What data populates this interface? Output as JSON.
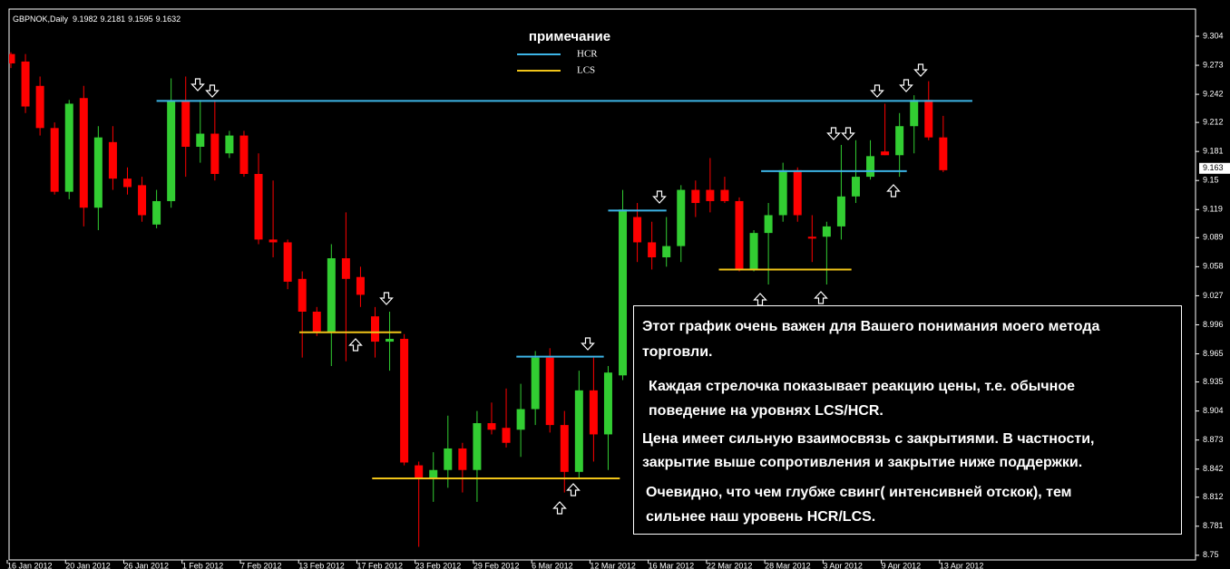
{
  "chart_data": {
    "type": "candlestick",
    "title": "GBPNOK,Daily",
    "header_values": [
      9.1982,
      9.2181,
      9.1595,
      9.1632
    ],
    "up_color": "#32cd32",
    "down_color": "#ff0000",
    "open": [
      9.285,
      9.277,
      9.251,
      9.206,
      9.138,
      9.238,
      9.121,
      9.191,
      9.152,
      9.145,
      9.103,
      9.128,
      9.235,
      9.186,
      9.2,
      9.179,
      9.198,
      9.157,
      9.087,
      9.084,
      9.045,
      9.01,
      8.988,
      9.067,
      9.047,
      9.005,
      8.978,
      8.981,
      8.846,
      8.833,
      8.841,
      8.864,
      8.841,
      8.891,
      8.886,
      8.884,
      8.906,
      8.961,
      8.889,
      8.839,
      8.926,
      8.879,
      8.942,
      9.111,
      9.084,
      9.068,
      9.08,
      9.14,
      9.14,
      9.14,
      9.128,
      9.055,
      9.094,
      9.113,
      9.161,
      9.09,
      9.09,
      9.101,
      9.133,
      9.154,
      9.181,
      9.177,
      9.208,
      9.236,
      9.196
    ],
    "high": [
      9.287,
      9.285,
      9.261,
      9.212,
      9.236,
      9.251,
      9.208,
      9.208,
      9.164,
      9.154,
      9.14,
      9.259,
      9.261,
      9.236,
      9.236,
      9.203,
      9.203,
      9.179,
      9.15,
      9.087,
      9.053,
      9.015,
      9.082,
      9.116,
      9.058,
      9.015,
      9.01,
      8.986,
      8.85,
      8.86,
      8.899,
      8.87,
      8.904,
      8.913,
      8.928,
      8.933,
      8.968,
      8.971,
      8.904,
      8.947,
      8.961,
      8.952,
      9.14,
      9.126,
      9.106,
      9.111,
      9.145,
      9.15,
      9.174,
      9.154,
      9.132,
      9.097,
      9.126,
      9.169,
      9.164,
      9.113,
      9.106,
      9.188,
      9.193,
      9.193,
      9.232,
      9.222,
      9.241,
      9.256,
      9.219
    ],
    "low": [
      9.27,
      9.222,
      9.198,
      9.135,
      9.13,
      9.101,
      9.097,
      9.14,
      9.135,
      9.106,
      9.099,
      9.121,
      9.154,
      9.169,
      9.15,
      9.174,
      9.154,
      9.082,
      9.068,
      9.034,
      8.961,
      8.984,
      8.952,
      8.957,
      9.015,
      8.961,
      8.947,
      8.846,
      8.759,
      8.807,
      8.822,
      8.817,
      8.807,
      8.879,
      8.865,
      8.855,
      8.889,
      8.881,
      8.817,
      8.831,
      8.85,
      8.841,
      8.937,
      9.063,
      9.055,
      9.058,
      9.063,
      9.111,
      9.116,
      9.126,
      9.053,
      9.053,
      9.039,
      9.106,
      9.106,
      9.063,
      9.039,
      9.087,
      9.126,
      9.151,
      9.177,
      9.154,
      9.179,
      9.193,
      9.159
    ],
    "close": [
      9.275,
      9.229,
      9.206,
      9.138,
      9.232,
      9.121,
      9.196,
      9.152,
      9.143,
      9.113,
      9.128,
      9.235,
      9.186,
      9.2,
      9.157,
      9.198,
      9.157,
      9.087,
      9.084,
      9.042,
      9.01,
      8.988,
      9.067,
      9.045,
      9.028,
      8.978,
      8.981,
      8.849,
      8.833,
      8.841,
      8.864,
      8.841,
      8.891,
      8.884,
      8.87,
      8.906,
      8.961,
      8.889,
      8.839,
      8.926,
      8.879,
      8.945,
      9.119,
      9.084,
      9.068,
      9.08,
      9.14,
      9.126,
      9.128,
      9.128,
      9.055,
      9.094,
      9.113,
      9.161,
      9.113,
      9.088,
      9.101,
      9.133,
      9.154,
      9.176,
      9.177,
      9.208,
      9.236,
      9.196,
      9.161
    ],
    "ylim": [
      8.745,
      9.333
    ],
    "yticks": [
      9.304,
      9.273,
      9.242,
      9.212,
      9.181,
      9.15,
      9.119,
      9.089,
      9.058,
      9.027,
      8.996,
      8.965,
      8.935,
      8.904,
      8.873,
      8.842,
      8.812,
      8.781,
      8.75
    ],
    "last_price": 9.163,
    "xticks": [
      {
        "value": 0,
        "label": "16 Jan 2012"
      },
      {
        "value": 4,
        "label": "20 Jan 2012"
      },
      {
        "value": 8,
        "label": "26 Jan 2012"
      },
      {
        "value": 12,
        "label": "1 Feb 2012"
      },
      {
        "value": 16,
        "label": "7 Feb 2012"
      },
      {
        "value": 20,
        "label": "13 Feb 2012"
      },
      {
        "value": 24,
        "label": "17 Feb 2012"
      },
      {
        "value": 28,
        "label": "23 Feb 2012"
      },
      {
        "value": 32,
        "label": "29 Feb 2012"
      },
      {
        "value": 36,
        "label": "6 Mar 2012"
      },
      {
        "value": 40,
        "label": "12 Mar 2012"
      },
      {
        "value": 44,
        "label": "16 Mar 2012"
      },
      {
        "value": 48,
        "label": "22 Mar 2012"
      },
      {
        "value": 52,
        "label": "28 Mar 2012"
      },
      {
        "value": 56,
        "label": "3 Apr 2012"
      },
      {
        "value": 60,
        "label": "9 Apr 2012"
      },
      {
        "value": 64,
        "label": "13 Apr 2012"
      }
    ],
    "legend_title": "примечание",
    "levels": [
      {
        "name": "HCR",
        "color": "#3cb4e6",
        "segments": [
          {
            "value": 9.235,
            "from": 10,
            "to": 66
          },
          {
            "value": 9.118,
            "from": 41,
            "to": 45
          },
          {
            "value": 9.16,
            "from": 51.5,
            "to": 61.5
          },
          {
            "value": 8.962,
            "from": 34.7,
            "to": 40.7
          }
        ]
      },
      {
        "name": "LCS",
        "color": "#f0c419",
        "segments": [
          {
            "value": 8.988,
            "from": 19.8,
            "to": 26.8
          },
          {
            "value": 8.832,
            "from": 24.8,
            "to": 41.8
          },
          {
            "value": 9.055,
            "from": 48.6,
            "to": 57.7
          }
        ]
      }
    ]
  },
  "note": {
    "paragraphs": [
      [
        "Этот график очень важен для Вашего понимания моего метода",
        "торговли."
      ],
      [
        "Каждая стрелочка показывает реакцию цены, т.е. обычное",
        "поведение на уровнях LCS/HCR."
      ],
      [
        "Цена имеет сильную взаимосвязь с закрытиями. В частности,",
        "закрытие выше сопротивления и закрытие ниже поддержки."
      ],
      [
        "Очевидно, что чем глубже свинг( интенсивней отскок), тем",
        "сильнее наш уровень HCR/LCS."
      ]
    ]
  }
}
